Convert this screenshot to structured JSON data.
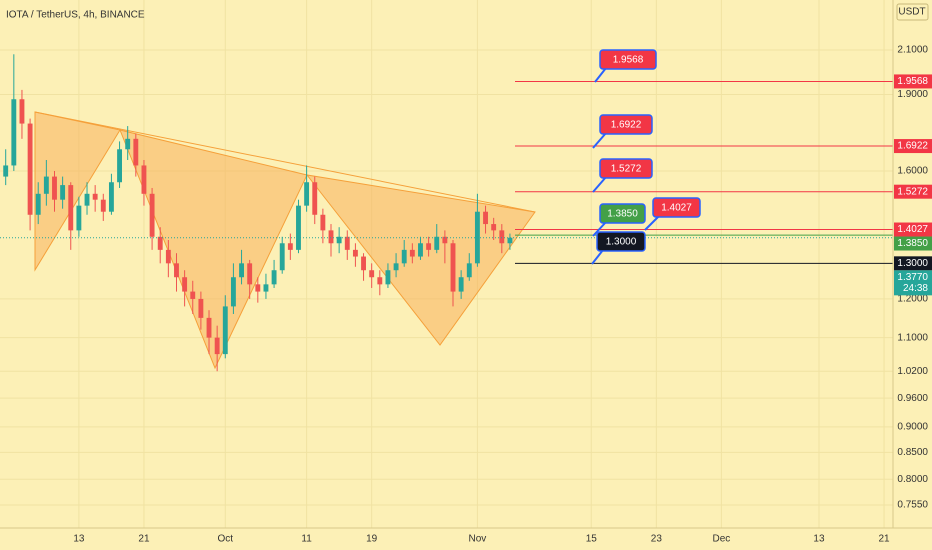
{
  "chart_data": {
    "type": "candlestick",
    "title": "IOTA / TetherUS, 4h, BINANCE",
    "currency": "USDT",
    "log_scale": true,
    "grid": true,
    "up_color": "#26a69a",
    "down_color": "#ef5350",
    "xlim": [
      3.3,
      113.1
    ],
    "xticks": [
      13,
      21,
      {
        "value": 31,
        "label": "Oct"
      },
      {
        "value": 41,
        "label": "11"
      },
      {
        "value": 49,
        "label": "19"
      },
      {
        "value": 62,
        "label": "Nov"
      },
      {
        "value": 76,
        "label": "15"
      },
      {
        "value": 84,
        "label": "23"
      },
      {
        "value": 92,
        "label": "Dec"
      },
      {
        "value": 104,
        "label": "13"
      },
      {
        "value": 112,
        "label": "21"
      }
    ],
    "ylim": [
      0.717,
      2.35
    ],
    "yticks": [
      {
        "value": 2.1,
        "label": "2.1000"
      },
      {
        "value": 1.9,
        "label": "1.9000"
      },
      {
        "value": 1.6,
        "label": "1.6000"
      },
      {
        "value": 1.2,
        "label": "1.2000"
      },
      {
        "value": 1.1,
        "label": "1.1000"
      },
      {
        "value": 1.02,
        "label": "1.0200"
      },
      {
        "value": 0.96,
        "label": "0.9600"
      },
      {
        "value": 0.9,
        "label": "0.9000"
      },
      {
        "value": 0.85,
        "label": "0.8500"
      },
      {
        "value": 0.8,
        "label": "0.8000"
      },
      {
        "value": 0.755,
        "label": "0.7550"
      }
    ],
    "x": [
      4,
      5,
      6,
      7,
      8,
      9,
      10,
      11,
      12,
      13,
      14,
      15,
      16,
      17,
      18,
      19,
      20,
      21,
      22,
      23,
      24,
      25,
      26,
      27,
      28,
      29,
      30,
      31,
      32,
      33,
      34,
      35,
      36,
      37,
      38,
      39,
      40,
      41,
      42,
      43,
      44,
      45,
      46,
      47,
      48,
      49,
      50,
      51,
      52,
      53,
      54,
      55,
      56,
      57,
      58,
      59,
      60,
      61,
      62,
      63,
      64,
      65,
      66
    ],
    "open": [
      1.58,
      1.62,
      1.88,
      1.78,
      1.45,
      1.52,
      1.58,
      1.5,
      1.55,
      1.4,
      1.48,
      1.52,
      1.5,
      1.46,
      1.56,
      1.68,
      1.72,
      1.62,
      1.52,
      1.38,
      1.34,
      1.3,
      1.26,
      1.22,
      1.2,
      1.15,
      1.1,
      1.06,
      1.18,
      1.26,
      1.3,
      1.24,
      1.22,
      1.24,
      1.28,
      1.36,
      1.34,
      1.48,
      1.56,
      1.45,
      1.4,
      1.36,
      1.38,
      1.34,
      1.32,
      1.28,
      1.26,
      1.24,
      1.28,
      1.3,
      1.34,
      1.32,
      1.36,
      1.34,
      1.38,
      1.36,
      1.22,
      1.26,
      1.3,
      1.46,
      1.42,
      1.4,
      1.36
    ],
    "high": [
      1.68,
      2.08,
      1.92,
      1.8,
      1.56,
      1.64,
      1.6,
      1.58,
      1.56,
      1.51,
      1.56,
      1.55,
      1.52,
      1.59,
      1.71,
      1.77,
      1.74,
      1.64,
      1.54,
      1.41,
      1.37,
      1.33,
      1.28,
      1.25,
      1.22,
      1.17,
      1.13,
      1.21,
      1.3,
      1.34,
      1.31,
      1.26,
      1.27,
      1.31,
      1.38,
      1.39,
      1.5,
      1.62,
      1.58,
      1.47,
      1.42,
      1.41,
      1.4,
      1.36,
      1.33,
      1.3,
      1.28,
      1.3,
      1.33,
      1.37,
      1.36,
      1.38,
      1.38,
      1.42,
      1.4,
      1.37,
      1.28,
      1.33,
      1.52,
      1.48,
      1.44,
      1.42,
      1.39
    ],
    "low": [
      1.55,
      1.6,
      1.72,
      1.4,
      1.42,
      1.48,
      1.46,
      1.47,
      1.34,
      1.38,
      1.45,
      1.46,
      1.43,
      1.45,
      1.54,
      1.64,
      1.58,
      1.48,
      1.34,
      1.3,
      1.26,
      1.22,
      1.18,
      1.16,
      1.12,
      1.06,
      1.02,
      1.05,
      1.16,
      1.24,
      1.2,
      1.19,
      1.2,
      1.23,
      1.27,
      1.31,
      1.33,
      1.46,
      1.42,
      1.36,
      1.32,
      1.33,
      1.31,
      1.29,
      1.25,
      1.23,
      1.21,
      1.23,
      1.26,
      1.29,
      1.3,
      1.31,
      1.32,
      1.33,
      1.3,
      1.18,
      1.2,
      1.25,
      1.29,
      1.39,
      1.37,
      1.33,
      1.34
    ],
    "close": [
      1.62,
      1.88,
      1.78,
      1.45,
      1.52,
      1.58,
      1.5,
      1.55,
      1.4,
      1.48,
      1.52,
      1.5,
      1.46,
      1.56,
      1.68,
      1.72,
      1.62,
      1.52,
      1.38,
      1.34,
      1.3,
      1.26,
      1.22,
      1.2,
      1.15,
      1.1,
      1.06,
      1.18,
      1.26,
      1.3,
      1.24,
      1.22,
      1.24,
      1.28,
      1.36,
      1.34,
      1.48,
      1.56,
      1.45,
      1.4,
      1.36,
      1.38,
      1.34,
      1.32,
      1.28,
      1.26,
      1.24,
      1.28,
      1.3,
      1.34,
      1.32,
      1.36,
      1.34,
      1.38,
      1.36,
      1.22,
      1.26,
      1.3,
      1.46,
      1.42,
      1.4,
      1.36,
      1.377
    ],
    "last_price": {
      "value": 1.377,
      "label": "1.3770",
      "countdown": "24:38",
      "color": "#26a69a"
    },
    "levels": [
      {
        "value": 1.9568,
        "label": "1.9568",
        "color": "#f23645"
      },
      {
        "value": 1.6922,
        "label": "1.6922",
        "color": "#f23645"
      },
      {
        "value": 1.5272,
        "label": "1.5272",
        "color": "#f23645"
      },
      {
        "value": 1.4027,
        "label": "1.4027",
        "color": "#f23645"
      },
      {
        "value": 1.385,
        "label": "1.3850",
        "color": "#43a047"
      },
      {
        "value": 1.3,
        "label": "1.3000",
        "color": "#131722"
      }
    ]
  }
}
